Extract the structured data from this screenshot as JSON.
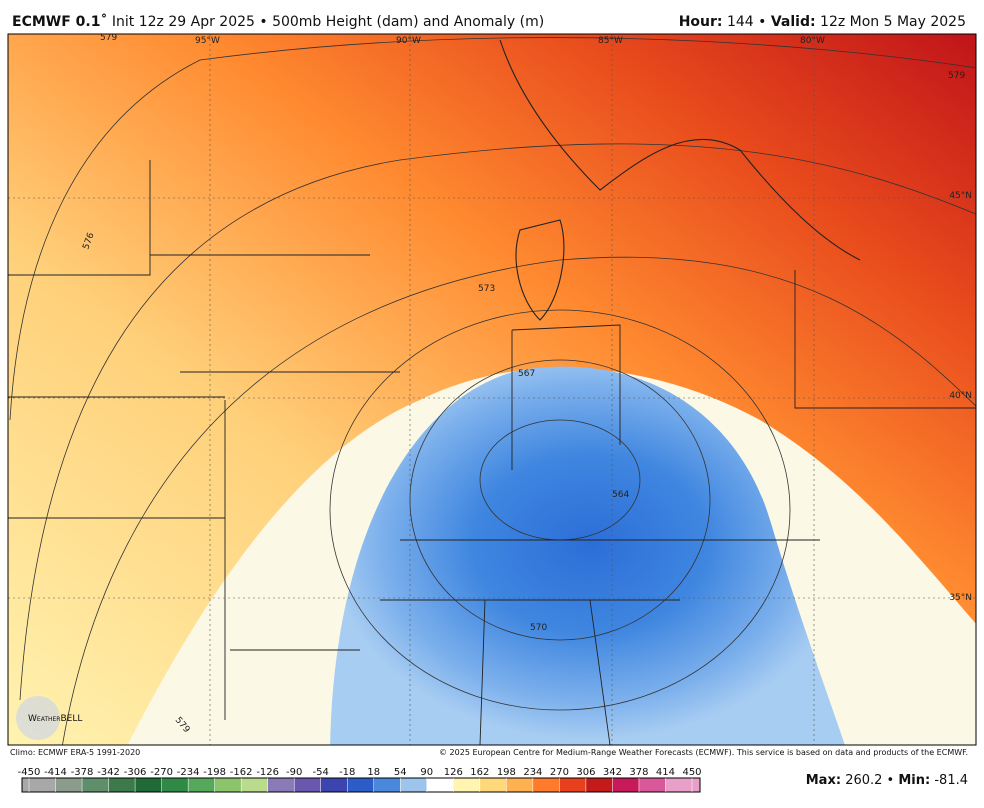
{
  "header": {
    "model": "ECMWF 0.1˚",
    "init": "Init 12z 29 Apr 2025 • 500mb Height (dam) and Anomaly (m)",
    "hour_label": "Hour:",
    "hour": "144 •",
    "valid_label": "Valid:",
    "valid": "12z Mon 5 May 2025"
  },
  "map": {
    "lon_labels": [
      "95°W",
      "90°W",
      "85°W",
      "80°W"
    ],
    "lat_labels": [
      "45°N",
      "40°N",
      "35°N"
    ],
    "contour_labels": [
      "579",
      "576",
      "573",
      "567",
      "564",
      "570",
      "579",
      "579"
    ],
    "logo": "WeatherBELL"
  },
  "footer": {
    "climo": "Climo: ECMWF ERA-5 1991-2020",
    "copyright": "© 2025 European Centre for Medium-Range Weather Forecasts (ECMWF). This service is based on data and products of the ECMWF."
  },
  "colorbar": {
    "ticks": [
      -450,
      -414,
      -378,
      -342,
      -306,
      -270,
      -234,
      -198,
      -162,
      -126,
      -90,
      -54,
      -18,
      18,
      54,
      90,
      126,
      162,
      198,
      234,
      270,
      306,
      342,
      378,
      414,
      450
    ],
    "colors": [
      "#a8a8a8",
      "#8c9c8c",
      "#5f8f6a",
      "#3c7a4c",
      "#1f6a36",
      "#2f8a46",
      "#56a85a",
      "#8cc46c",
      "#b8dc8c",
      "#8a7ab8",
      "#6a58b0",
      "#3c44b0",
      "#2c5cc8",
      "#4a88dc",
      "#9cc4ec",
      "#ffffff",
      "#fff4b0",
      "#ffd87a",
      "#ffb050",
      "#ff7a2a",
      "#e8401c",
      "#c41a1a",
      "#c81a5a",
      "#d8589a",
      "#e8a0c8"
    ]
  },
  "stats": {
    "max_label": "Max:",
    "max": 260.2,
    "separator": "•",
    "min_label": "Min:",
    "min": -81.4
  }
}
